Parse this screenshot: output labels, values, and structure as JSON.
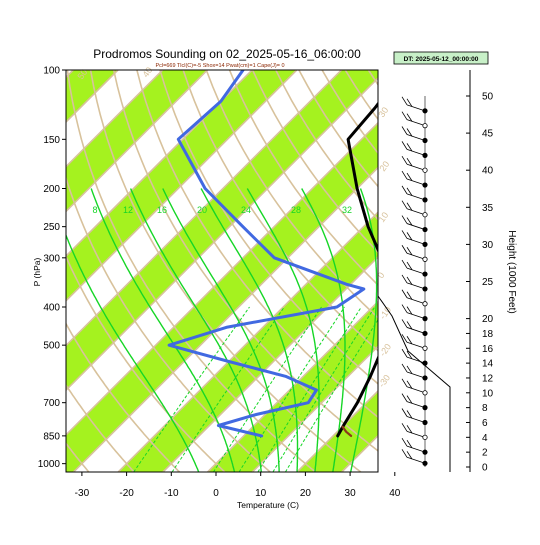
{
  "chart_data": {
    "type": "skew-t log-p sounding",
    "title": "Prodromos Sounding on 02_2025-05-16_06:00:00",
    "subtitle": "Pcl=669 Tlcl(C)=-5 Shox=14 Pwat(cm)=1 Cape(J)= 0",
    "datetime_badge": "DT: 2025-05-12_00:00:00",
    "xlabel": "Temperature (C)",
    "ylabel": "P (hPa)",
    "ylabel_right": "Height (1000 Feet)",
    "x_ticks": [
      "-30",
      "-20",
      "-10",
      "0",
      "10",
      "20",
      "30",
      "40"
    ],
    "pressure_ticks": [
      "100",
      "150",
      "200",
      "250",
      "300",
      "400",
      "500",
      "700",
      "850",
      "1000"
    ],
    "height_ticks": [
      "50",
      "45",
      "40",
      "35",
      "30",
      "25",
      "20",
      "18",
      "16",
      "14",
      "12",
      "10",
      "8",
      "6",
      "4",
      "2",
      "0"
    ],
    "mixing_ratio_labels": [
      "8",
      "12",
      "16",
      "20",
      "24",
      "28",
      "32"
    ],
    "dry_adiabat_labels": [
      "50",
      "40",
      "30",
      "20",
      "10",
      "0",
      "-10",
      "-20",
      "-30"
    ],
    "colors": {
      "temperature": "#000000",
      "dewpoint": "#4169e1",
      "isotherm_band": "#a5f21f",
      "isopleth": "#d8c29c",
      "moist_adiabat": "#16d626",
      "parcel": "#8b3a1a",
      "badge_fill": "#c8f0c8"
    },
    "temperature_profile": [
      {
        "p": 850,
        "t": 21
      },
      {
        "p": 800,
        "t": 20
      },
      {
        "p": 700,
        "t": 18
      },
      {
        "p": 600,
        "t": 15
      },
      {
        "p": 500,
        "t": 11
      },
      {
        "p": 400,
        "t": 3
      },
      {
        "p": 350,
        "t": -3
      },
      {
        "p": 300,
        "t": -9
      },
      {
        "p": 250,
        "t": -19
      },
      {
        "p": 200,
        "t": -30
      },
      {
        "p": 150,
        "t": -43
      },
      {
        "p": 125,
        "t": -44
      },
      {
        "p": 100,
        "t": -46
      }
    ],
    "dewpoint_profile": [
      {
        "p": 850,
        "t": 4
      },
      {
        "p": 800,
        "t": -8
      },
      {
        "p": 750,
        "t": -2
      },
      {
        "p": 700,
        "t": 7
      },
      {
        "p": 650,
        "t": 6
      },
      {
        "p": 600,
        "t": -4
      },
      {
        "p": 550,
        "t": -20
      },
      {
        "p": 500,
        "t": -37
      },
      {
        "p": 450,
        "t": -28
      },
      {
        "p": 400,
        "t": -8
      },
      {
        "p": 360,
        "t": -6
      },
      {
        "p": 350,
        "t": -11
      },
      {
        "p": 300,
        "t": -33
      },
      {
        "p": 250,
        "t": -47
      },
      {
        "p": 200,
        "t": -64
      },
      {
        "p": 150,
        "t": -81
      },
      {
        "p": 120,
        "t": -80
      },
      {
        "p": 100,
        "t": -82
      }
    ],
    "parcel_profile": [
      {
        "p": 850,
        "t": 24
      },
      {
        "p": 830,
        "t": 22
      },
      {
        "p": 805,
        "t": 20
      }
    ],
    "wind_barbs": [
      {
        "h": 48
      },
      {
        "h": 46
      },
      {
        "h": 44
      },
      {
        "h": 42
      },
      {
        "h": 40
      },
      {
        "h": 38
      },
      {
        "h": 36
      },
      {
        "h": 34
      },
      {
        "h": 32
      },
      {
        "h": 30
      },
      {
        "h": 28
      },
      {
        "h": 26
      },
      {
        "h": 24
      },
      {
        "h": 22
      },
      {
        "h": 20
      },
      {
        "h": 18
      },
      {
        "h": 16
      },
      {
        "h": 14
      },
      {
        "h": 12
      },
      {
        "h": 10
      },
      {
        "h": 8
      },
      {
        "h": 6
      },
      {
        "h": 4
      },
      {
        "h": 2
      },
      {
        "h": 0.5
      }
    ]
  }
}
